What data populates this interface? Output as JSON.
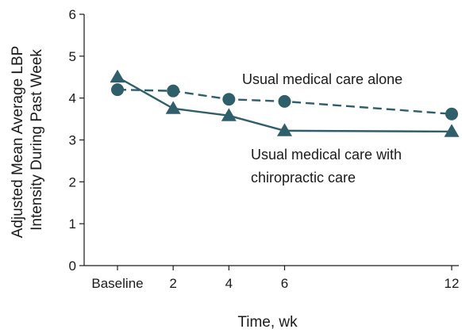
{
  "chart_data": {
    "type": "line",
    "xlabel": "Time, wk",
    "ylabel_lines": [
      "Adjusted Mean Average LBP",
      "Intensity During Past Week"
    ],
    "x_tick_labels": [
      "Baseline",
      "2",
      "4",
      "6",
      "12"
    ],
    "x": [
      0,
      2,
      4,
      6,
      12
    ],
    "ylim": [
      0,
      6
    ],
    "yticks": [
      "0",
      "1",
      "2",
      "3",
      "4",
      "5",
      "6"
    ],
    "grid": false,
    "color": "#2e5f6b",
    "series": [
      {
        "name": "Usual medical care alone",
        "marker": "circle",
        "linestyle": "dashed",
        "values": [
          4.2,
          4.17,
          3.97,
          3.92,
          3.62
        ]
      },
      {
        "name_lines": [
          "Usual medical care with",
          "chiropractic care"
        ],
        "marker": "triangle",
        "linestyle": "solid",
        "values": [
          4.5,
          3.75,
          3.58,
          3.22,
          3.2
        ]
      }
    ]
  }
}
